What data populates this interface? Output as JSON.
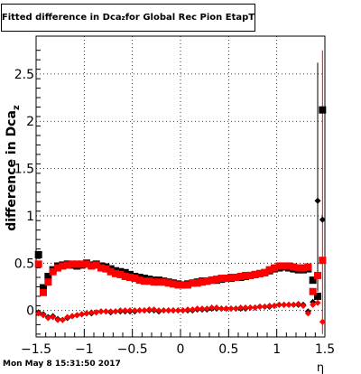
{
  "title": {
    "main": "Fitted difference in Dca",
    "subscript": "z",
    "rest": " for Global Rec Pion EtapT"
  },
  "footer": {
    "timestamp": "Mon May  8 15:31:50 2017"
  },
  "chart_data": {
    "type": "scatter",
    "title": "Fitted difference in Dca_z for Global Rec Pion EtapT",
    "xlabel": "η",
    "ylabel": "difference in Dca_z",
    "ylabel_main": "difference in Dca",
    "ylabel_sub": "z",
    "xlim": [
      -1.5,
      1.5
    ],
    "ylim": [
      -0.28,
      2.9
    ],
    "xticks": [
      -1.5,
      -1,
      -0.5,
      0,
      0.5,
      1,
      1.5
    ],
    "xtick_labels": [
      "−1.5",
      "−1",
      "−0.5",
      "0",
      "0.5",
      "1",
      "1.5"
    ],
    "yticks": [
      0,
      0.5,
      1,
      1.5,
      2,
      2.5
    ],
    "ytick_labels": [
      "0",
      "0.5",
      "1",
      "1.5",
      "2",
      "2.5"
    ],
    "grid": true,
    "series": [
      {
        "marker": "square",
        "color": "#000000",
        "x": [
          -1.475,
          -1.425,
          -1.375,
          -1.325,
          -1.275,
          -1.225,
          -1.175,
          -1.125,
          -1.075,
          -1.025,
          -0.975,
          -0.925,
          -0.875,
          -0.825,
          -0.775,
          -0.725,
          -0.675,
          -0.625,
          -0.575,
          -0.525,
          -0.475,
          -0.425,
          -0.375,
          -0.325,
          -0.275,
          -0.225,
          -0.175,
          -0.125,
          -0.075,
          -0.025,
          0.025,
          0.075,
          0.125,
          0.175,
          0.225,
          0.275,
          0.325,
          0.375,
          0.425,
          0.475,
          0.525,
          0.575,
          0.625,
          0.675,
          0.725,
          0.775,
          0.825,
          0.875,
          0.925,
          0.975,
          1.025,
          1.075,
          1.125,
          1.175,
          1.225,
          1.275,
          1.325,
          1.375,
          1.425,
          1.475
        ],
        "y": [
          0.59,
          0.24,
          0.36,
          0.43,
          0.47,
          0.48,
          0.49,
          0.48,
          0.47,
          0.48,
          0.5,
          0.48,
          0.49,
          0.47,
          0.46,
          0.44,
          0.42,
          0.41,
          0.4,
          0.38,
          0.36,
          0.35,
          0.34,
          0.33,
          0.32,
          0.32,
          0.31,
          0.3,
          0.29,
          0.28,
          0.27,
          0.28,
          0.29,
          0.3,
          0.31,
          0.31,
          0.32,
          0.32,
          0.33,
          0.34,
          0.34,
          0.35,
          0.35,
          0.36,
          0.37,
          0.38,
          0.39,
          0.4,
          0.42,
          0.44,
          0.45,
          0.46,
          0.45,
          0.44,
          0.43,
          0.43,
          0.44,
          0.32,
          0.15,
          2.12
        ]
      },
      {
        "marker": "square",
        "color": "#ff0000",
        "x": [
          -1.475,
          -1.425,
          -1.375,
          -1.325,
          -1.275,
          -1.225,
          -1.175,
          -1.125,
          -1.075,
          -1.025,
          -0.975,
          -0.925,
          -0.875,
          -0.825,
          -0.775,
          -0.725,
          -0.675,
          -0.625,
          -0.575,
          -0.525,
          -0.475,
          -0.425,
          -0.375,
          -0.325,
          -0.275,
          -0.225,
          -0.175,
          -0.125,
          -0.075,
          -0.025,
          0.025,
          0.075,
          0.125,
          0.175,
          0.225,
          0.275,
          0.325,
          0.375,
          0.425,
          0.475,
          0.525,
          0.575,
          0.625,
          0.675,
          0.725,
          0.775,
          0.825,
          0.875,
          0.925,
          0.975,
          1.025,
          1.075,
          1.125,
          1.175,
          1.225,
          1.275,
          1.325,
          1.375,
          1.425,
          1.475
        ],
        "y": [
          0.49,
          0.19,
          0.3,
          0.41,
          0.45,
          0.47,
          0.48,
          0.49,
          0.49,
          0.49,
          0.49,
          0.47,
          0.48,
          0.45,
          0.44,
          0.41,
          0.39,
          0.38,
          0.36,
          0.35,
          0.34,
          0.32,
          0.31,
          0.31,
          0.3,
          0.3,
          0.3,
          0.29,
          0.28,
          0.27,
          0.27,
          0.27,
          0.29,
          0.29,
          0.3,
          0.31,
          0.32,
          0.33,
          0.34,
          0.34,
          0.35,
          0.35,
          0.36,
          0.37,
          0.37,
          0.38,
          0.39,
          0.4,
          0.43,
          0.45,
          0.47,
          0.47,
          0.47,
          0.46,
          0.45,
          0.45,
          0.46,
          0.2,
          0.37,
          0.53
        ]
      },
      {
        "marker": "diamond",
        "color": "#000000",
        "x": [
          -1.475,
          -1.425,
          -1.375,
          -1.325,
          -1.275,
          -1.225,
          -1.175,
          -1.125,
          -1.075,
          -1.025,
          -0.975,
          -0.925,
          -0.875,
          -0.825,
          -0.775,
          -0.725,
          -0.675,
          -0.625,
          -0.575,
          -0.525,
          -0.475,
          -0.425,
          -0.375,
          -0.325,
          -0.275,
          -0.225,
          -0.175,
          -0.125,
          -0.075,
          -0.025,
          0.025,
          0.075,
          0.125,
          0.175,
          0.225,
          0.275,
          0.325,
          0.375,
          0.425,
          0.475,
          0.525,
          0.575,
          0.625,
          0.675,
          0.725,
          0.775,
          0.825,
          0.875,
          0.925,
          0.975,
          1.025,
          1.075,
          1.125,
          1.175,
          1.225,
          1.275,
          1.325,
          1.375,
          1.425,
          1.475
        ],
        "y": [
          -0.02,
          -0.04,
          -0.07,
          -0.06,
          -0.09,
          -0.1,
          -0.08,
          -0.06,
          -0.05,
          -0.04,
          -0.03,
          -0.03,
          -0.02,
          -0.01,
          -0.01,
          -0.02,
          -0.01,
          -0.01,
          -0.01,
          -0.01,
          -0.01,
          0,
          0,
          0,
          0,
          -0.01,
          0,
          0,
          0,
          0,
          0,
          0,
          0,
          0.01,
          0.01,
          0.01,
          0.02,
          0.02,
          0.02,
          0.02,
          0.02,
          0.02,
          0.02,
          0.02,
          0.03,
          0.03,
          0.04,
          0.04,
          0.04,
          0.05,
          0.06,
          0.06,
          0.06,
          0.06,
          0.06,
          0.06,
          -0.01,
          0.09,
          1.16,
          0.96
        ]
      },
      {
        "marker": "diamond",
        "color": "#ff0000",
        "x": [
          -1.475,
          -1.425,
          -1.375,
          -1.325,
          -1.275,
          -1.225,
          -1.175,
          -1.125,
          -1.075,
          -1.025,
          -0.975,
          -0.925,
          -0.875,
          -0.825,
          -0.775,
          -0.725,
          -0.675,
          -0.625,
          -0.575,
          -0.525,
          -0.475,
          -0.425,
          -0.375,
          -0.325,
          -0.275,
          -0.225,
          -0.175,
          -0.125,
          -0.075,
          -0.025,
          0.025,
          0.075,
          0.125,
          0.175,
          0.225,
          0.275,
          0.325,
          0.375,
          0.425,
          0.475,
          0.525,
          0.575,
          0.625,
          0.675,
          0.725,
          0.775,
          0.825,
          0.875,
          0.925,
          0.975,
          1.025,
          1.075,
          1.125,
          1.175,
          1.225,
          1.275,
          1.325,
          1.375,
          1.425,
          1.475
        ],
        "y": [
          -0.03,
          -0.05,
          -0.08,
          -0.07,
          -0.1,
          -0.1,
          -0.07,
          -0.06,
          -0.05,
          -0.04,
          -0.03,
          -0.02,
          -0.02,
          -0.01,
          -0.01,
          -0.01,
          -0.01,
          0,
          0,
          0,
          0,
          0,
          0,
          0.01,
          0.01,
          0,
          0,
          0,
          0,
          0,
          0,
          0.01,
          0.01,
          0.02,
          0.02,
          0.02,
          0.03,
          0.03,
          0.02,
          0.02,
          0.02,
          0.02,
          0.03,
          0.03,
          0.03,
          0.03,
          0.04,
          0.04,
          0.05,
          0.05,
          0.06,
          0.06,
          0.06,
          0.06,
          0.07,
          0.05,
          -0.03,
          0.06,
          0.08,
          -0.12
        ]
      }
    ],
    "error_bars": [
      {
        "x": 1.425,
        "y_low": 0.3,
        "y_high": 2.62,
        "color": "#000000"
      },
      {
        "x": 1.475,
        "y_low": -0.25,
        "y_high": 2.75,
        "color": "#ff0000"
      },
      {
        "x": 1.425,
        "y_low": 0.2,
        "y_high": 1.55,
        "color": "#000000"
      }
    ]
  }
}
